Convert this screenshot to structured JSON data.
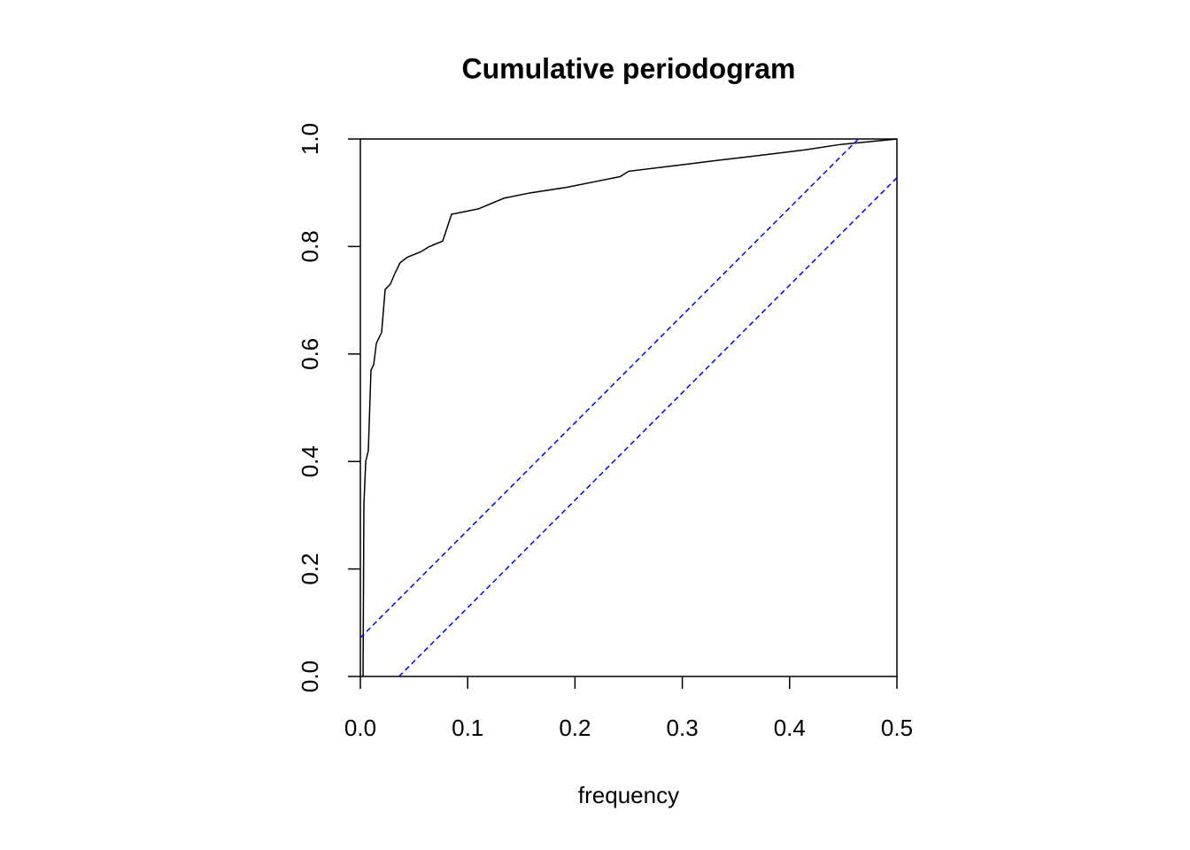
{
  "chart_data": {
    "type": "line",
    "title": "Cumulative periodogram",
    "x_label": "frequency",
    "xlim": [
      0,
      0.5
    ],
    "ylim": [
      0,
      1
    ],
    "xticks": [
      {
        "value": 0,
        "label": "0.0"
      },
      0.1,
      0.2,
      0.3,
      0.4,
      0.5
    ],
    "yticks": [
      {
        "value": 0,
        "label": "0.0"
      },
      0.2,
      0.4,
      0.6,
      0.8,
      {
        "value": 1,
        "label": "1.0"
      }
    ],
    "series": [
      {
        "color": "#000000",
        "dash": false,
        "x": [
          0.0025,
          0.0033,
          0.005,
          0.0074,
          0.0099,
          0.0124,
          0.0149,
          0.0198,
          0.0231,
          0.028,
          0.0322,
          0.0371,
          0.0437,
          0.0561,
          0.0644,
          0.0767,
          0.085,
          0.11,
          0.134,
          0.159,
          0.192,
          0.217,
          0.242,
          0.25,
          0.291,
          0.332,
          0.374,
          0.415,
          0.448,
          0.5
        ],
        "values": [
          0,
          0.32,
          0.4,
          0.42,
          0.57,
          0.58,
          0.62,
          0.64,
          0.72,
          0.73,
          0.75,
          0.77,
          0.78,
          0.79,
          0.8,
          0.81,
          0.86,
          0.87,
          0.89,
          0.9,
          0.91,
          0.92,
          0.93,
          0.94,
          0.95,
          0.96,
          0.97,
          0.98,
          0.99,
          1
        ]
      },
      {
        "color": "#0000ff",
        "dash": true,
        "x": [
          0,
          0.464
        ],
        "values": [
          0.072,
          1
        ]
      },
      {
        "color": "#0000ff",
        "dash": true,
        "x": [
          0.036,
          0.5
        ],
        "values": [
          0,
          0.928
        ]
      }
    ]
  }
}
